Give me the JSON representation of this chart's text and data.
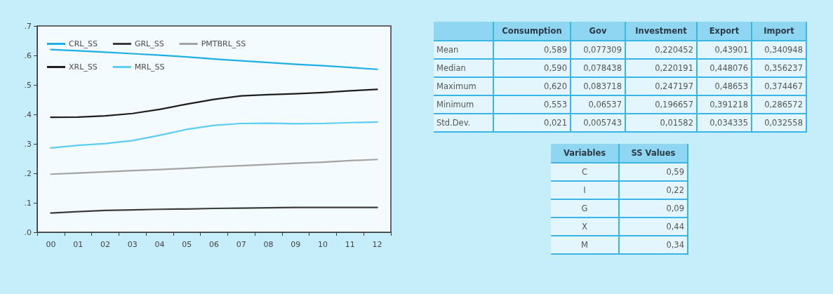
{
  "chart_data": [
    {
      "type": "line",
      "categories": [
        "00",
        "01",
        "02",
        "03",
        "04",
        "05",
        "06",
        "07",
        "08",
        "09",
        "10",
        "11",
        "12"
      ],
      "series": [
        {
          "name": "CRL_SS",
          "color": "#1cb0e4",
          "values": [
            0.62,
            0.616,
            0.611,
            0.606,
            0.601,
            0.595,
            0.588,
            0.582,
            0.576,
            0.57,
            0.565,
            0.559,
            0.553
          ]
        },
        {
          "name": "GRL_SS",
          "color": "#3c3c3c",
          "values": [
            0.065,
            0.07,
            0.074,
            0.076,
            0.078,
            0.079,
            0.081,
            0.082,
            0.083,
            0.084,
            0.084,
            0.084,
            0.084
          ]
        },
        {
          "name": "PMTBRL_SS",
          "color": "#a3a3a3",
          "values": [
            0.197,
            0.201,
            0.205,
            0.209,
            0.213,
            0.217,
            0.222,
            0.226,
            0.23,
            0.234,
            0.238,
            0.243,
            0.247
          ]
        },
        {
          "name": "XRL_SS",
          "color": "#1e1e1e",
          "values": [
            0.39,
            0.391,
            0.395,
            0.403,
            0.417,
            0.435,
            0.451,
            0.463,
            0.467,
            0.47,
            0.474,
            0.48,
            0.485
          ]
        },
        {
          "name": "MRL_SS",
          "color": "#5ccdf3",
          "values": [
            0.286,
            0.295,
            0.301,
            0.311,
            0.329,
            0.349,
            0.363,
            0.369,
            0.37,
            0.368,
            0.369,
            0.372,
            0.374
          ]
        }
      ],
      "ylim": [
        0,
        0.7
      ],
      "yticks": [
        {
          "value": 0,
          "label": ".0"
        },
        {
          "value": 0.1,
          "label": ".1"
        },
        {
          "value": 0.2,
          "label": ".2"
        },
        {
          "value": 0.3,
          "label": ".3"
        },
        {
          "value": 0.4,
          "label": ".4"
        },
        {
          "value": 0.5,
          "label": ".5"
        },
        {
          "value": 0.6,
          "label": ".6"
        },
        {
          "value": 0.7,
          "label": ".7"
        }
      ],
      "grid": false,
      "legend": "top left",
      "marker": "none",
      "line_style": "solid"
    },
    {
      "type": "other",
      "categories": [
        "Consumption",
        "Gov",
        "Investment",
        "Export",
        "Import"
      ],
      "y_categories": [
        "Mean",
        "Median",
        "Maximum",
        "Minimum",
        "Std.Dev."
      ],
      "cell_labels": [
        [
          "0,589",
          "0,077309",
          "0,220452",
          "0,43901",
          "0,340948"
        ],
        [
          "0,590",
          "0,078438",
          "0,220191",
          "0,448076",
          "0,356237"
        ],
        [
          "0,620",
          "0,083718",
          "0,247197",
          "0,48653",
          "0,374467"
        ],
        [
          "0,553",
          "0,06537",
          "0,196657",
          "0,391218",
          "0,286572"
        ],
        [
          "0,021",
          "0,005743",
          "0,01582",
          "0,034335",
          "0,032558"
        ]
      ]
    },
    {
      "type": "other",
      "categories": [
        "Variables",
        "SS Values"
      ],
      "cell_labels": [
        [
          "C",
          "0,59"
        ],
        [
          "I",
          "0,22"
        ],
        [
          "G",
          "0,09"
        ],
        [
          "X",
          "0,44"
        ],
        [
          "M",
          "0,34"
        ]
      ]
    }
  ]
}
